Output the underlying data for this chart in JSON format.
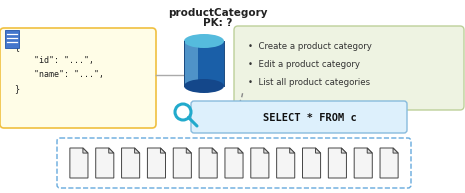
{
  "title_line1": "productCategory",
  "title_line2": "PK: ?",
  "bullet_points": [
    "Create a product category",
    "Edit a product category",
    "List all product categories"
  ],
  "query_text": "SELECT * FROM c",
  "json_bg": "#FFFDE7",
  "json_border": "#F0C040",
  "bullet_bg": "#EEF3E2",
  "bullet_border": "#BDD09A",
  "query_bg": "#DDF0FC",
  "query_border": "#88BBDD",
  "partition_bg": "#FFFFFF",
  "partition_border": "#66AADD",
  "cylinder_top": "#55BBDD",
  "cylinder_body_l": "#5599CC",
  "cylinder_body_r": "#1A5FA8",
  "cylinder_bot": "#14478A",
  "magnifier_color": "#22AACC",
  "doc_icon_bg": "#4477CC",
  "num_partitions": 13,
  "fig_bg": "#FFFFFF",
  "title_fontsize": 7.5,
  "body_fontsize": 6.0,
  "bullet_fontsize": 6.2,
  "query_fontsize": 7.5
}
